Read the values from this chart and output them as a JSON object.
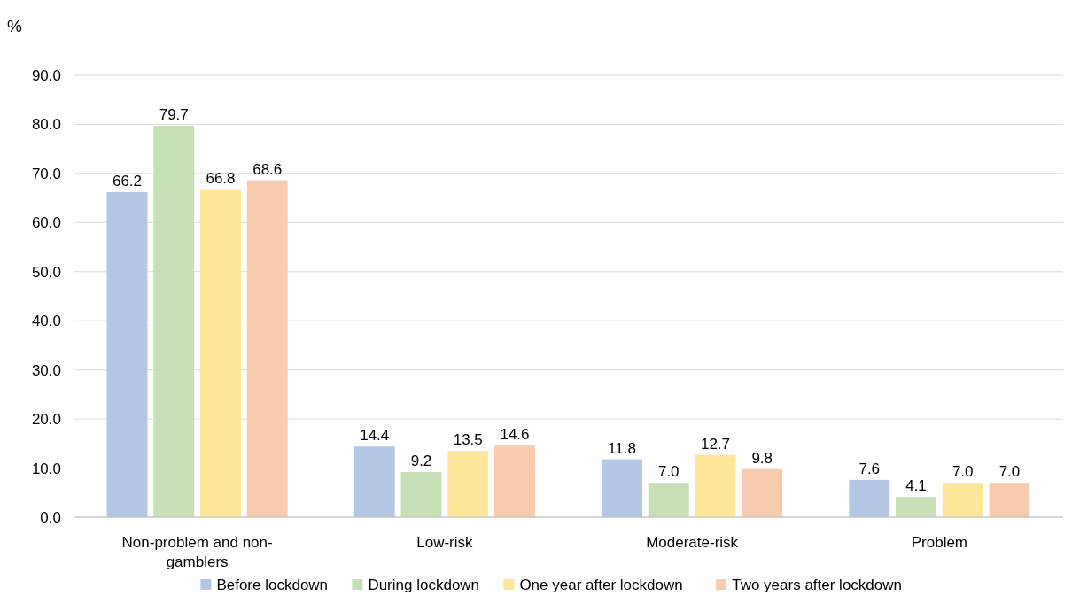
{
  "chart_data": {
    "type": "bar",
    "ylabel": "%",
    "categories": [
      "Non-problem and non-gamblers",
      "Low-risk",
      "Moderate-risk",
      "Problem"
    ],
    "series": [
      {
        "name": "Before lockdown",
        "color": "#b4c7e7",
        "values": [
          66.2,
          14.4,
          11.8,
          7.6
        ],
        "value_labels": [
          "66.2",
          "14.4",
          "11.8",
          "7.6"
        ]
      },
      {
        "name": "During lockdown",
        "color": "#c5e0b4",
        "values": [
          79.7,
          9.2,
          7.0,
          4.1
        ],
        "value_labels": [
          "79.7",
          "9.2",
          "7.0",
          "4.1"
        ]
      },
      {
        "name": "One year after lockdown",
        "color": "#ffe699",
        "values": [
          66.8,
          13.5,
          12.7,
          7.0
        ],
        "value_labels": [
          "66.8",
          "13.5",
          "12.7",
          "7.0"
        ]
      },
      {
        "name": "Two years after lockdown",
        "color": "#f8cbad",
        "values": [
          68.6,
          14.6,
          9.8,
          7.0
        ],
        "value_labels": [
          "68.6",
          "14.6",
          "9.8",
          "7.0"
        ]
      }
    ],
    "ylim": [
      0,
      90
    ],
    "yticks": [
      {
        "value": 0,
        "label": "0.0"
      },
      {
        "value": 10,
        "label": "10.0"
      },
      {
        "value": 20,
        "label": "20.0"
      },
      {
        "value": 30,
        "label": "30.0"
      },
      {
        "value": 40,
        "label": "40.0"
      },
      {
        "value": 50,
        "label": "50.0"
      },
      {
        "value": 60,
        "label": "60.0"
      },
      {
        "value": 70,
        "label": "70.0"
      },
      {
        "value": 80,
        "label": "80.0"
      },
      {
        "value": 90,
        "label": "90.0"
      }
    ],
    "grid": "y",
    "legend": "bottom"
  }
}
